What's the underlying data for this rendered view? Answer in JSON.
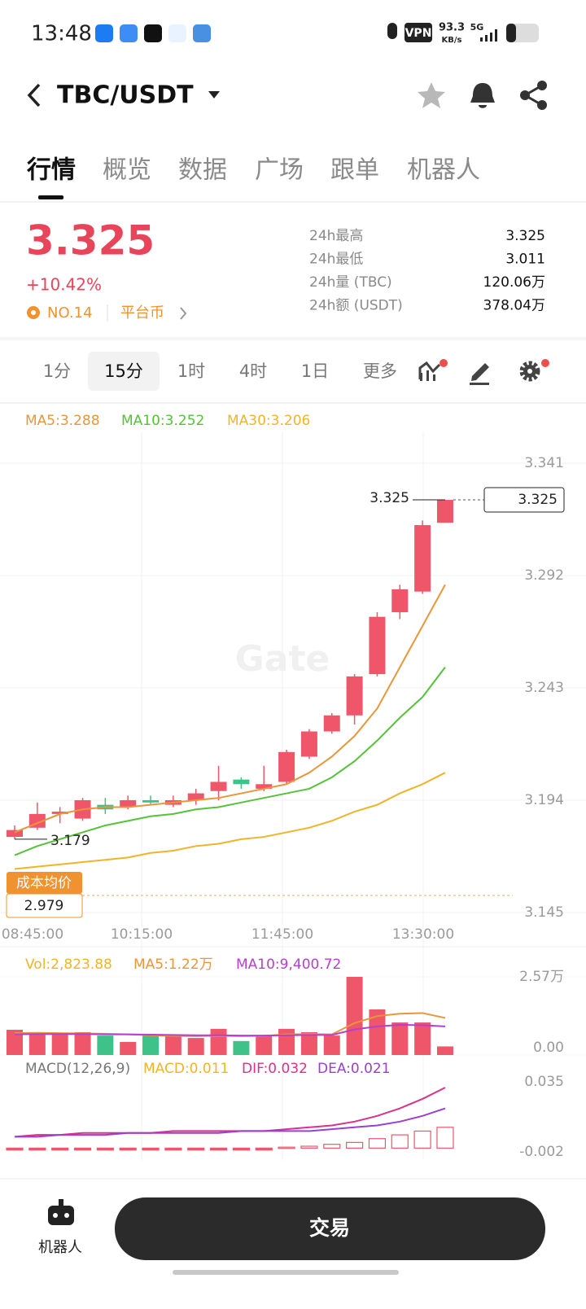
{
  "status": {
    "time": "13:48",
    "vpn": "VPN",
    "speed": "93.3",
    "speed_unit": "KB/s",
    "network": "5G"
  },
  "header": {
    "pair": "TBC/USDT"
  },
  "tabs": [
    "行情",
    "概览",
    "数据",
    "广场",
    "跟单",
    "机器人"
  ],
  "price": {
    "last": "3.325",
    "change": "+10.42%",
    "rank": "NO.14",
    "tag": "平台币"
  },
  "stats": [
    {
      "label": "24h最高",
      "value": "3.325"
    },
    {
      "label": "24h最低",
      "value": "3.011"
    },
    {
      "label": "24h量 (TBC)",
      "value": "120.06万"
    },
    {
      "label": "24h额 (USDT)",
      "value": "378.04万"
    }
  ],
  "intervals": [
    "1分",
    "15分",
    "1时",
    "4时",
    "1日",
    "更多"
  ],
  "chart": {
    "type": "candlestick",
    "watermark": "Gate",
    "ma_labels": [
      "MA5:3.288",
      "MA10:3.252",
      "MA30:3.206"
    ],
    "ylim": [
      3.145,
      3.341
    ],
    "yticks": [
      3.341,
      3.292,
      3.243,
      3.194,
      3.145
    ],
    "x_labels": [
      "08:45:00",
      "10:15:00",
      "11:45:00",
      "13:30:00"
    ],
    "up_color": "#f0566a",
    "down_color": "#3fc28a",
    "candles": [
      {
        "open": 3.178,
        "high": 3.183,
        "low": 3.177,
        "close": 3.181
      },
      {
        "open": 3.182,
        "high": 3.193,
        "low": 3.181,
        "close": 3.188
      },
      {
        "open": 3.188,
        "high": 3.191,
        "low": 3.184,
        "close": 3.189
      },
      {
        "open": 3.186,
        "high": 3.195,
        "low": 3.185,
        "close": 3.194
      },
      {
        "open": 3.192,
        "high": 3.195,
        "low": 3.188,
        "close": 3.19
      },
      {
        "open": 3.191,
        "high": 3.196,
        "low": 3.19,
        "close": 3.194
      },
      {
        "open": 3.194,
        "high": 3.196,
        "low": 3.192,
        "close": 3.193
      },
      {
        "open": 3.192,
        "high": 3.196,
        "low": 3.191,
        "close": 3.194
      },
      {
        "open": 3.194,
        "high": 3.199,
        "low": 3.192,
        "close": 3.197
      },
      {
        "open": 3.198,
        "high": 3.209,
        "low": 3.194,
        "close": 3.202
      },
      {
        "open": 3.203,
        "high": 3.204,
        "low": 3.199,
        "close": 3.201
      },
      {
        "open": 3.199,
        "high": 3.209,
        "low": 3.198,
        "close": 3.201
      },
      {
        "open": 3.202,
        "high": 3.216,
        "low": 3.201,
        "close": 3.215
      },
      {
        "open": 3.213,
        "high": 3.225,
        "low": 3.212,
        "close": 3.224
      },
      {
        "open": 3.224,
        "high": 3.232,
        "low": 3.223,
        "close": 3.231
      },
      {
        "open": 3.231,
        "high": 3.249,
        "low": 3.227,
        "close": 3.248
      },
      {
        "open": 3.249,
        "high": 3.276,
        "low": 3.248,
        "close": 3.274
      },
      {
        "open": 3.276,
        "high": 3.288,
        "low": 3.273,
        "close": 3.286
      },
      {
        "open": 3.285,
        "high": 3.316,
        "low": 3.284,
        "close": 3.314
      },
      {
        "open": 3.315,
        "high": 3.325,
        "low": 3.315,
        "close": 3.325
      }
    ],
    "ma": [
      {
        "name": "MA5",
        "color": "#e8963a",
        "values": [
          3.18,
          3.184,
          3.188,
          3.19,
          3.191,
          3.191,
          3.192,
          3.193,
          3.194,
          3.195,
          3.197,
          3.199,
          3.201,
          3.206,
          3.213,
          3.222,
          3.234,
          3.252,
          3.27,
          3.288
        ]
      },
      {
        "name": "MA10",
        "color": "#56c23a",
        "values": [
          3.17,
          3.174,
          3.177,
          3.18,
          3.183,
          3.185,
          3.187,
          3.188,
          3.19,
          3.191,
          3.193,
          3.195,
          3.197,
          3.199,
          3.204,
          3.211,
          3.22,
          3.23,
          3.239,
          3.252
        ]
      },
      {
        "name": "MA30",
        "color": "#f0b429",
        "values": [
          3.164,
          3.165,
          3.166,
          3.167,
          3.168,
          3.169,
          3.171,
          3.172,
          3.174,
          3.175,
          3.177,
          3.178,
          3.18,
          3.182,
          3.185,
          3.189,
          3.192,
          3.197,
          3.201,
          3.206
        ]
      }
    ],
    "high_label": "3.325",
    "low_label": "3.179",
    "last_label": "3.325",
    "cost_label": "成本均价",
    "cost_value": "2.979"
  },
  "volume": {
    "labels": [
      "Vol:2,823.88",
      "MA5:1.22万",
      "MA10:9,400.72"
    ],
    "ylim": [
      0,
      25700
    ],
    "yticks": [
      {
        "value": 25700,
        "label": "2.57万"
      },
      {
        "value": 0,
        "label": "0.00"
      }
    ],
    "values": [
      8300,
      7500,
      7000,
      7500,
      6400,
      4300,
      6400,
      6400,
      5600,
      8600,
      4600,
      6400,
      8600,
      7500,
      6400,
      25700,
      15000,
      10700,
      10700,
      2823.88
    ],
    "ma": [
      {
        "name": "MA5",
        "color": "#e8963a",
        "values": [
          7200,
          7300,
          7200,
          7100,
          7000,
          6800,
          6500,
          6300,
          6200,
          6300,
          6200,
          6300,
          6800,
          6900,
          6800,
          10500,
          12800,
          13600,
          13800,
          12200
        ]
      },
      {
        "name": "MA10",
        "color": "#b63fd0",
        "values": [
          6800,
          6900,
          6900,
          6900,
          6800,
          6800,
          6700,
          6600,
          6500,
          6500,
          6400,
          6400,
          6500,
          6600,
          6600,
          8400,
          9400,
          9900,
          9800,
          9400
        ]
      }
    ]
  },
  "macd": {
    "labels": [
      "MACD(12,26,9)",
      "MACD:0.011",
      "DIF:0.032",
      "DEA:0.021"
    ],
    "ylim": [
      -0.002,
      0.035
    ],
    "yticks": [
      0.035,
      -0.002
    ],
    "bars": [
      -0.001,
      -0.001,
      -0.001,
      -0.001,
      -0.001,
      -0.001,
      -0.001,
      -0.001,
      -0.001,
      -0.001,
      -0.001,
      -0.001,
      0.0005,
      0.001,
      0.002,
      0.003,
      0.005,
      0.007,
      0.009,
      0.011
    ],
    "lines": [
      {
        "name": "DIF",
        "color": "#d6338a",
        "values": [
          0.006,
          0.007,
          0.007,
          0.008,
          0.008,
          0.008,
          0.008,
          0.009,
          0.009,
          0.009,
          0.009,
          0.009,
          0.01,
          0.011,
          0.012,
          0.014,
          0.017,
          0.021,
          0.026,
          0.032
        ]
      },
      {
        "name": "DEA",
        "color": "#9b3fd0",
        "values": [
          0.006,
          0.006,
          0.007,
          0.007,
          0.007,
          0.008,
          0.008,
          0.008,
          0.008,
          0.008,
          0.009,
          0.009,
          0.009,
          0.009,
          0.01,
          0.011,
          0.012,
          0.014,
          0.017,
          0.021
        ]
      }
    ]
  },
  "bottom": {
    "robot": "机器人",
    "trade": "交易"
  }
}
